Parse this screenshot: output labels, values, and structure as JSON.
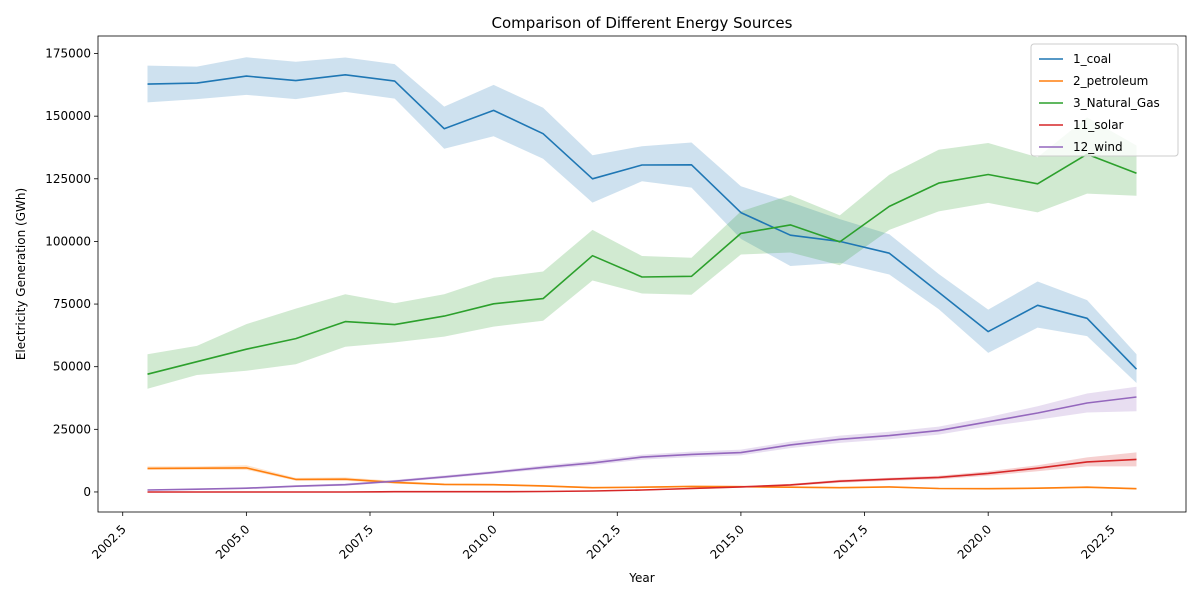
{
  "chart_data": {
    "type": "line",
    "title": "Comparison of Different Energy Sources",
    "xlabel": "Year",
    "ylabel": "Electricity Generation (GWh)",
    "xlim": [
      2002.0,
      2024.0
    ],
    "ylim": [
      -8000,
      182000
    ],
    "x_ticks": [
      "2002.5",
      "2005.0",
      "2007.5",
      "2010.0",
      "2012.5",
      "2015.0",
      "2017.5",
      "2020.0",
      "2022.5"
    ],
    "x_tick_values": [
      2002.5,
      2005.0,
      2007.5,
      2010.0,
      2012.5,
      2015.0,
      2017.5,
      2020.0,
      2022.5
    ],
    "y_ticks": [
      "0",
      "25000",
      "50000",
      "75000",
      "100000",
      "125000",
      "150000",
      "175000"
    ],
    "y_tick_values": [
      0,
      25000,
      50000,
      75000,
      100000,
      125000,
      150000,
      175000
    ],
    "grid": false,
    "legend_position": "top-right",
    "x": [
      2003,
      2004,
      2005,
      2006,
      2007,
      2008,
      2009,
      2010,
      2011,
      2012,
      2013,
      2014,
      2015,
      2016,
      2017,
      2018,
      2019,
      2020,
      2021,
      2022,
      2023
    ],
    "series": [
      {
        "name": "1_coal",
        "color": "#1f77b4",
        "values": [
          162800,
          163200,
          166000,
          164200,
          166500,
          164000,
          145000,
          152300,
          143000,
          125000,
          130500,
          130600,
          111500,
          102500,
          100000,
          95300,
          79700,
          64000,
          74500,
          69300,
          49000
        ],
        "lower": [
          155500,
          156800,
          158500,
          156800,
          159700,
          157000,
          137000,
          142000,
          133000,
          115500,
          124000,
          121500,
          101000,
          90200,
          91500,
          86800,
          73000,
          55500,
          65600,
          62200,
          43500
        ],
        "upper": [
          170200,
          169800,
          173500,
          171700,
          173400,
          170800,
          153800,
          162500,
          153400,
          134400,
          138000,
          139500,
          122000,
          115700,
          108900,
          102900,
          87000,
          72800,
          84000,
          76600,
          55000
        ]
      },
      {
        "name": "2_petroleum",
        "color": "#ff7f0e",
        "values": [
          9400,
          9500,
          9600,
          5000,
          5100,
          3800,
          3000,
          2900,
          2400,
          1700,
          1900,
          2200,
          2100,
          1900,
          1700,
          2000,
          1400,
          1300,
          1500,
          1900,
          1300
        ],
        "lower": [
          8800,
          8900,
          8800,
          4500,
          4500,
          3300,
          2700,
          2500,
          2000,
          1400,
          1600,
          1900,
          1800,
          1600,
          1400,
          1700,
          1100,
          1000,
          1200,
          1500,
          1000
        ],
        "upper": [
          10200,
          10200,
          10700,
          5600,
          5800,
          4400,
          3400,
          3300,
          2800,
          2000,
          2200,
          2500,
          2400,
          2200,
          2000,
          2300,
          1700,
          1600,
          1800,
          2300,
          1600
        ]
      },
      {
        "name": "3_Natural_Gas",
        "color": "#2ca02c",
        "values": [
          47000,
          52000,
          57000,
          61200,
          68000,
          66800,
          70200,
          75100,
          77200,
          94300,
          85800,
          86100,
          103200,
          106600,
          99800,
          114000,
          123300,
          126700,
          123000,
          134800,
          127200
        ],
        "lower": [
          41200,
          46700,
          48400,
          51000,
          58000,
          59700,
          62000,
          66000,
          68300,
          84400,
          79200,
          78700,
          94800,
          95600,
          90500,
          104600,
          112000,
          115400,
          111600,
          119100,
          118200
        ],
        "upper": [
          55000,
          58300,
          67000,
          73200,
          78900,
          75300,
          78900,
          85500,
          88000,
          104600,
          94200,
          93500,
          112000,
          118500,
          110400,
          126600,
          136600,
          139300,
          133600,
          149500,
          138300
        ]
      },
      {
        "name": "11_solar",
        "color": "#d62728",
        "values": [
          0,
          0,
          0,
          0,
          0,
          100,
          100,
          100,
          200,
          400,
          800,
          1400,
          2000,
          2800,
          4300,
          5100,
          5800,
          7400,
          9500,
          12000,
          13000
        ],
        "lower": [
          0,
          0,
          0,
          0,
          0,
          0,
          0,
          50,
          100,
          250,
          600,
          1100,
          1700,
          2400,
          3700,
          4500,
          5100,
          6500,
          8300,
          10200,
          10200
        ],
        "upper": [
          150,
          150,
          150,
          150,
          150,
          200,
          200,
          200,
          300,
          550,
          1000,
          1700,
          2300,
          3200,
          4900,
          5700,
          6500,
          8300,
          10700,
          13800,
          15800
        ]
      },
      {
        "name": "12_wind",
        "color": "#9467bd",
        "values": [
          800,
          1100,
          1500,
          2300,
          2900,
          4300,
          6000,
          7800,
          9800,
          11600,
          13900,
          15000,
          15700,
          18800,
          21000,
          22500,
          24500,
          28000,
          31500,
          35500,
          37900
        ],
        "lower": [
          600,
          900,
          1200,
          1900,
          2500,
          3800,
          5400,
          7200,
          9000,
          10700,
          12900,
          13900,
          14600,
          17500,
          19600,
          21000,
          22900,
          26200,
          28800,
          31700,
          32200
        ],
        "upper": [
          1000,
          1300,
          1800,
          2700,
          3400,
          4800,
          6600,
          8400,
          10600,
          12500,
          14900,
          16100,
          16900,
          20100,
          22500,
          24000,
          26100,
          29900,
          34200,
          39300,
          42000
        ]
      }
    ]
  }
}
